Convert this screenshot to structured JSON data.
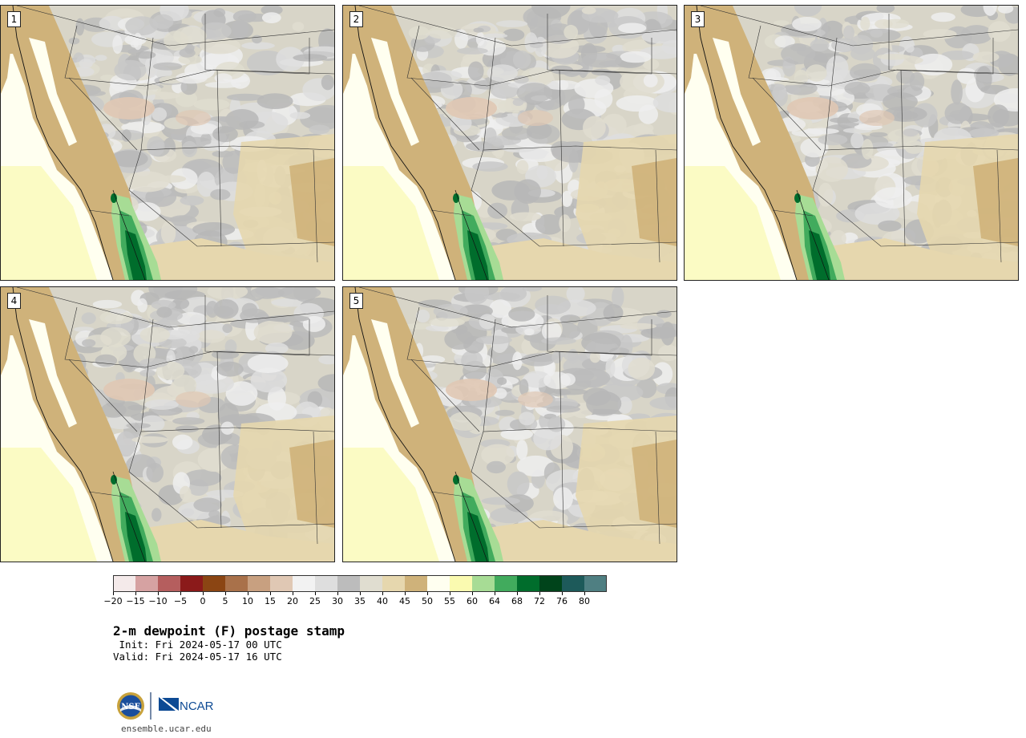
{
  "figure": {
    "panels": [
      {
        "label": "1"
      },
      {
        "label": "2"
      },
      {
        "label": "3"
      },
      {
        "label": "4"
      },
      {
        "label": "5"
      }
    ],
    "colorbar": {
      "ticks": [
        "−20",
        "−15",
        "−10",
        "−5",
        "0",
        "5",
        "10",
        "15",
        "20",
        "25",
        "30",
        "35",
        "40",
        "45",
        "50",
        "55",
        "60",
        "64",
        "68",
        "72",
        "76",
        "80"
      ],
      "colors": [
        "#f4eaea",
        "#d6a2a2",
        "#b55e5e",
        "#8b1a1a",
        "#8b4513",
        "#a9714a",
        "#c8a080",
        "#e0c8b4",
        "#f2f2f2",
        "#dedede",
        "#bcbcbc",
        "#e0ddd0",
        "#e6d7ae",
        "#cfb27a",
        "#fffff0",
        "#fafab0",
        "#a7dc95",
        "#41ab5d",
        "#006d2c",
        "#00441b",
        "#1d5a5a",
        "#4f7f82"
      ]
    },
    "title": "2-m dewpoint (F) postage stamp",
    "init": " Init: Fri 2024-05-17 00 UTC",
    "valid": "Valid: Fri 2024-05-17 16 UTC",
    "logos": {
      "nsf": "NSF",
      "ncar": "NCAR"
    },
    "site": "ensemble.ucar.edu"
  }
}
